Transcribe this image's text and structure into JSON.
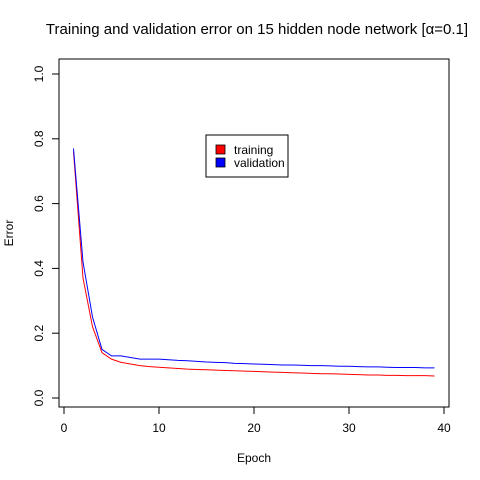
{
  "chart_data": {
    "type": "line",
    "title": "Training and validation error on 15 hidden node network [α=0.1]",
    "xlabel": "Epoch",
    "ylabel": "Error",
    "xlim": [
      0,
      40
    ],
    "ylim": [
      0,
      1.0
    ],
    "x_ticks": [
      "0",
      "10",
      "20",
      "30",
      "40"
    ],
    "y_ticks": [
      "0.0",
      "0.2",
      "0.4",
      "0.6",
      "0.8",
      "1.0"
    ],
    "grid": false,
    "legend_position": "center-top",
    "x": [
      1,
      2,
      3,
      4,
      5,
      6,
      7,
      8,
      9,
      10,
      11,
      12,
      13,
      14,
      15,
      16,
      17,
      18,
      19,
      20,
      21,
      22,
      23,
      24,
      25,
      26,
      27,
      28,
      29,
      30,
      31,
      32,
      33,
      34,
      35,
      36,
      37,
      38,
      39
    ],
    "series": [
      {
        "name": "training",
        "color": "#ff0000",
        "values": [
          0.76,
          0.37,
          0.22,
          0.14,
          0.12,
          0.11,
          0.105,
          0.1,
          0.097,
          0.095,
          0.093,
          0.091,
          0.089,
          0.088,
          0.087,
          0.086,
          0.085,
          0.084,
          0.083,
          0.082,
          0.081,
          0.08,
          0.079,
          0.078,
          0.077,
          0.076,
          0.075,
          0.075,
          0.074,
          0.073,
          0.072,
          0.071,
          0.071,
          0.07,
          0.07,
          0.069,
          0.069,
          0.069,
          0.068
        ]
      },
      {
        "name": "validation",
        "color": "#0000ff",
        "values": [
          0.77,
          0.42,
          0.25,
          0.15,
          0.13,
          0.13,
          0.125,
          0.12,
          0.12,
          0.12,
          0.118,
          0.116,
          0.115,
          0.113,
          0.111,
          0.11,
          0.109,
          0.107,
          0.106,
          0.105,
          0.104,
          0.103,
          0.102,
          0.102,
          0.101,
          0.1,
          0.1,
          0.099,
          0.098,
          0.098,
          0.097,
          0.096,
          0.096,
          0.095,
          0.094,
          0.094,
          0.094,
          0.093,
          0.093
        ]
      }
    ]
  }
}
